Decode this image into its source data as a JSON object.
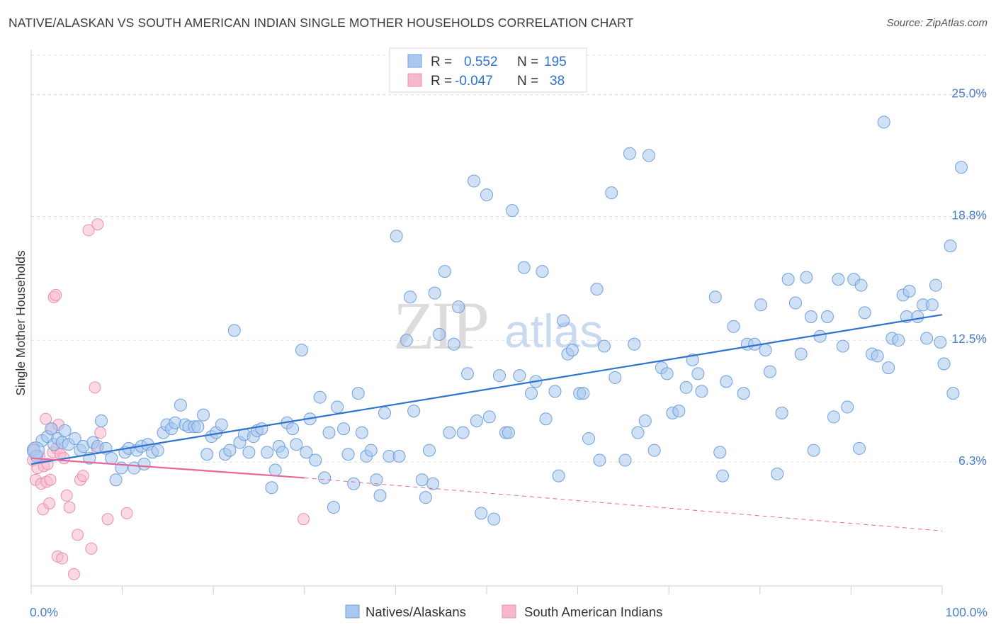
{
  "title": "NATIVE/ALASKAN VS SOUTH AMERICAN INDIAN SINGLE MOTHER HOUSEHOLDS CORRELATION CHART",
  "source": "Source: ZipAtlas.com",
  "watermark": {
    "zip": "ZIP",
    "atlas": "atlas"
  },
  "legend_top": [
    {
      "r_label": "R =",
      "r_value": "0.552",
      "n_label": "N =",
      "n_value": "195"
    },
    {
      "r_label": "R =",
      "r_value": "-0.047",
      "n_label": "N =",
      "n_value": "38"
    }
  ],
  "legend_bottom": [
    "Natives/Alaskans",
    "South American Indians"
  ],
  "colors": {
    "blue_fill": "#aac8ef",
    "blue_stroke": "#6f9fdc",
    "blue_line": "#2f73d0",
    "pink_fill": "#f6b9cc",
    "pink_stroke": "#ec8fae",
    "pink_line": "#e8679a",
    "tick_text": "#4a7cc7",
    "grid": "#dddddd"
  },
  "chart_data": {
    "type": "scatter",
    "title": "NATIVE/ALASKAN VS SOUTH AMERICAN INDIAN SINGLE MOTHER HOUSEHOLDS CORRELATION CHART",
    "xlabel": "",
    "ylabel": "Single Mother Households",
    "x_range": [
      0,
      100
    ],
    "y_range": [
      0,
      27
    ],
    "x_tick_labels": [
      "0.0%",
      "100.0%"
    ],
    "y_ticks": [
      6.3,
      12.5,
      18.8,
      25.0
    ],
    "y_tick_labels": [
      "6.3%",
      "12.5%",
      "18.8%",
      "25.0%"
    ],
    "grid": true,
    "legend_position": "top-center",
    "series": [
      {
        "name": "Natives/Alaskans",
        "trend": {
          "x0": 0,
          "y0": 6.2,
          "x1": 100,
          "y1": 13.8
        },
        "points": [
          [
            0.3,
            6.9
          ],
          [
            0.6,
            6.6
          ],
          [
            1.2,
            7.4
          ],
          [
            1.8,
            7.6
          ],
          [
            2.2,
            8.0
          ],
          [
            2.5,
            7.2
          ],
          [
            2.9,
            7.5
          ],
          [
            3.4,
            7.3
          ],
          [
            3.7,
            7.9
          ],
          [
            4.1,
            7.2
          ],
          [
            4.8,
            7.5
          ],
          [
            5.4,
            6.9
          ],
          [
            5.7,
            7.1
          ],
          [
            6.4,
            6.5
          ],
          [
            6.8,
            7.3
          ],
          [
            7.3,
            7.1
          ],
          [
            7.7,
            8.4
          ],
          [
            8.2,
            7.0
          ],
          [
            8.8,
            6.5
          ],
          [
            9.3,
            5.4
          ],
          [
            9.9,
            6.0
          ],
          [
            10.3,
            6.8
          ],
          [
            10.7,
            7.0
          ],
          [
            11.3,
            6.0
          ],
          [
            11.6,
            6.9
          ],
          [
            12.1,
            7.1
          ],
          [
            12.4,
            6.2
          ],
          [
            12.8,
            7.2
          ],
          [
            13.3,
            6.8
          ],
          [
            13.9,
            6.9
          ],
          [
            14.5,
            7.8
          ],
          [
            14.9,
            8.2
          ],
          [
            15.4,
            8.0
          ],
          [
            15.8,
            8.3
          ],
          [
            16.4,
            9.2
          ],
          [
            16.9,
            8.2
          ],
          [
            17.3,
            8.1
          ],
          [
            17.9,
            8.1
          ],
          [
            18.3,
            8.1
          ],
          [
            18.9,
            8.7
          ],
          [
            19.3,
            6.7
          ],
          [
            19.8,
            7.6
          ],
          [
            20.3,
            7.8
          ],
          [
            20.9,
            8.2
          ],
          [
            21.3,
            6.7
          ],
          [
            21.8,
            6.9
          ],
          [
            22.3,
            13.0
          ],
          [
            22.9,
            7.3
          ],
          [
            23.4,
            7.7
          ],
          [
            23.9,
            6.8
          ],
          [
            24.4,
            7.6
          ],
          [
            24.8,
            7.9
          ],
          [
            25.3,
            8.0
          ],
          [
            25.9,
            6.8
          ],
          [
            26.4,
            5.0
          ],
          [
            26.8,
            5.9
          ],
          [
            27.2,
            7.1
          ],
          [
            27.6,
            6.8
          ],
          [
            28.1,
            8.3
          ],
          [
            28.7,
            8.0
          ],
          [
            29.1,
            7.2
          ],
          [
            29.7,
            12.0
          ],
          [
            30.2,
            6.8
          ],
          [
            30.6,
            8.5
          ],
          [
            31.2,
            6.4
          ],
          [
            31.7,
            9.6
          ],
          [
            32.2,
            5.5
          ],
          [
            32.7,
            7.8
          ],
          [
            33.2,
            4.0
          ],
          [
            33.6,
            9.1
          ],
          [
            34.3,
            8.0
          ],
          [
            34.8,
            6.7
          ],
          [
            35.4,
            5.2
          ],
          [
            35.9,
            9.8
          ],
          [
            36.3,
            7.8
          ],
          [
            36.8,
            6.6
          ],
          [
            37.3,
            6.9
          ],
          [
            37.9,
            5.4
          ],
          [
            38.3,
            4.6
          ],
          [
            38.8,
            8.8
          ],
          [
            39.3,
            6.6
          ],
          [
            40.1,
            17.8
          ],
          [
            40.4,
            6.6
          ],
          [
            41.2,
            12.5
          ],
          [
            41.6,
            14.7
          ],
          [
            42.0,
            8.9
          ],
          [
            42.9,
            5.4
          ],
          [
            43.3,
            4.5
          ],
          [
            43.7,
            6.9
          ],
          [
            44.1,
            5.2
          ],
          [
            44.8,
            12.8
          ],
          [
            44.3,
            14.9
          ],
          [
            45.4,
            16.0
          ],
          [
            45.9,
            7.8
          ],
          [
            46.4,
            12.3
          ],
          [
            46.9,
            14.2
          ],
          [
            47.4,
            7.8
          ],
          [
            47.9,
            10.8
          ],
          [
            48.6,
            20.6
          ],
          [
            48.9,
            8.4
          ],
          [
            49.4,
            3.7
          ],
          [
            50.0,
            19.9
          ],
          [
            50.3,
            8.6
          ],
          [
            50.8,
            3.4
          ],
          [
            51.4,
            10.7
          ],
          [
            52.1,
            7.8
          ],
          [
            52.4,
            7.8
          ],
          [
            52.8,
            19.1
          ],
          [
            53.6,
            10.7
          ],
          [
            54.1,
            16.2
          ],
          [
            54.9,
            9.8
          ],
          [
            55.4,
            10.4
          ],
          [
            56.1,
            16.0
          ],
          [
            56.5,
            8.5
          ],
          [
            57.5,
            9.9
          ],
          [
            57.9,
            5.6
          ],
          [
            58.4,
            13.5
          ],
          [
            58.9,
            11.8
          ],
          [
            59.4,
            12.0
          ],
          [
            60.2,
            9.8
          ],
          [
            60.6,
            9.8
          ],
          [
            61.2,
            7.5
          ],
          [
            62.1,
            15.1
          ],
          [
            62.4,
            6.4
          ],
          [
            62.9,
            12.2
          ],
          [
            63.7,
            20.0
          ],
          [
            64.1,
            10.6
          ],
          [
            65.2,
            6.4
          ],
          [
            65.7,
            22.0
          ],
          [
            66.2,
            12.3
          ],
          [
            66.6,
            7.8
          ],
          [
            67.4,
            8.4
          ],
          [
            67.8,
            21.9
          ],
          [
            68.4,
            6.9
          ],
          [
            69.2,
            11.1
          ],
          [
            69.8,
            10.8
          ],
          [
            70.4,
            8.8
          ],
          [
            71.1,
            8.9
          ],
          [
            71.9,
            10.1
          ],
          [
            72.6,
            11.5
          ],
          [
            73.2,
            10.8
          ],
          [
            73.6,
            9.9
          ],
          [
            75.1,
            14.7
          ],
          [
            75.6,
            6.8
          ],
          [
            75.9,
            5.6
          ],
          [
            76.3,
            10.4
          ],
          [
            77.1,
            13.2
          ],
          [
            78.2,
            9.8
          ],
          [
            78.6,
            12.3
          ],
          [
            79.4,
            12.3
          ],
          [
            80.1,
            14.3
          ],
          [
            80.6,
            12.0
          ],
          [
            81.1,
            10.9
          ],
          [
            81.9,
            5.7
          ],
          [
            82.4,
            8.8
          ],
          [
            83.1,
            15.6
          ],
          [
            83.9,
            14.4
          ],
          [
            84.5,
            11.8
          ],
          [
            85.1,
            15.7
          ],
          [
            85.6,
            13.7
          ],
          [
            85.9,
            6.9
          ],
          [
            86.6,
            12.7
          ],
          [
            87.4,
            13.7
          ],
          [
            88.1,
            8.6
          ],
          [
            88.6,
            15.6
          ],
          [
            89.1,
            12.2
          ],
          [
            89.6,
            9.1
          ],
          [
            90.3,
            15.6
          ],
          [
            90.9,
            7.0
          ],
          [
            91.1,
            15.3
          ],
          [
            91.5,
            13.9
          ],
          [
            92.3,
            11.8
          ],
          [
            92.9,
            11.7
          ],
          [
            93.6,
            23.6
          ],
          [
            94.1,
            11.1
          ],
          [
            94.5,
            12.6
          ],
          [
            95.2,
            12.5
          ],
          [
            95.7,
            14.8
          ],
          [
            96.1,
            13.7
          ],
          [
            96.4,
            15.0
          ],
          [
            97.3,
            13.7
          ],
          [
            97.9,
            14.3
          ],
          [
            98.3,
            12.6
          ],
          [
            98.9,
            14.3
          ],
          [
            99.3,
            15.3
          ],
          [
            99.8,
            12.4
          ],
          [
            100.2,
            11.3
          ],
          [
            100.9,
            17.3
          ],
          [
            101.2,
            9.8
          ],
          [
            102.1,
            21.3
          ]
        ]
      },
      {
        "name": "South American Indians",
        "trend": {
          "x0": 0,
          "y0": 6.5,
          "x1": 30,
          "y1": 5.5,
          "dashed_to_x": 100,
          "dashed_to_y": 2.8
        },
        "points": [
          [
            0.2,
            6.4
          ],
          [
            0.3,
            7.0
          ],
          [
            0.5,
            5.4
          ],
          [
            0.7,
            6.0
          ],
          [
            0.9,
            6.6
          ],
          [
            1.1,
            5.2
          ],
          [
            1.3,
            3.9
          ],
          [
            1.4,
            6.1
          ],
          [
            1.6,
            8.5
          ],
          [
            1.7,
            5.3
          ],
          [
            1.8,
            6.2
          ],
          [
            2.0,
            4.2
          ],
          [
            2.1,
            5.4
          ],
          [
            2.3,
            8.0
          ],
          [
            2.4,
            6.8
          ],
          [
            2.5,
            14.7
          ],
          [
            2.7,
            14.8
          ],
          [
            2.8,
            7.0
          ],
          [
            2.9,
            1.5
          ],
          [
            3.0,
            8.2
          ],
          [
            3.2,
            6.7
          ],
          [
            3.4,
            1.4
          ],
          [
            3.6,
            6.5
          ],
          [
            3.9,
            4.6
          ],
          [
            4.2,
            4.0
          ],
          [
            4.7,
            0.6
          ],
          [
            5.1,
            2.6
          ],
          [
            5.4,
            5.4
          ],
          [
            5.7,
            5.6
          ],
          [
            6.3,
            18.1
          ],
          [
            6.6,
            1.9
          ],
          [
            7.0,
            10.1
          ],
          [
            7.2,
            7.0
          ],
          [
            7.6,
            7.8
          ],
          [
            8.4,
            3.4
          ],
          [
            10.5,
            3.7
          ],
          [
            29.9,
            3.4
          ],
          [
            7.3,
            18.4
          ]
        ]
      }
    ]
  }
}
